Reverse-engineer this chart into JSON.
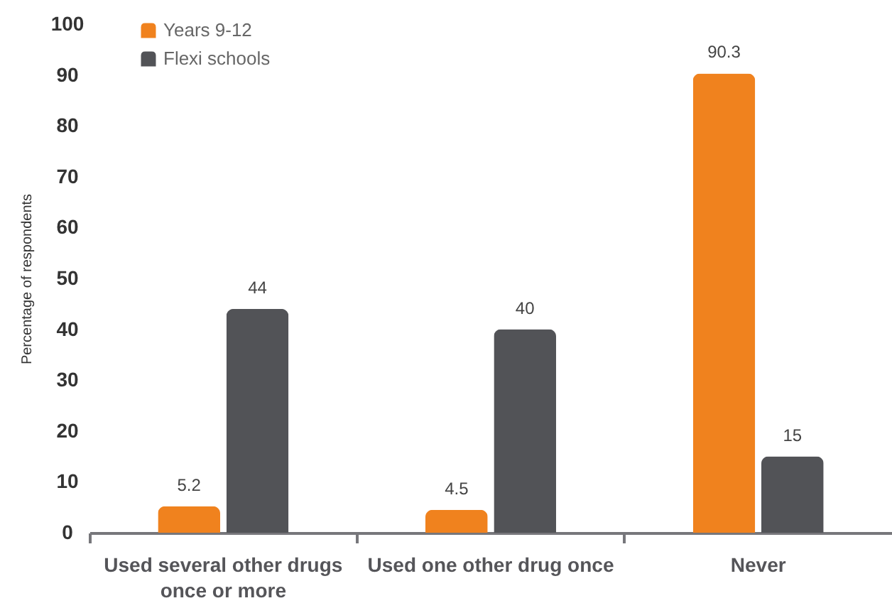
{
  "chart_data": {
    "type": "bar",
    "ylabel": "Percentage of respondents",
    "categories": [
      "Used several other drugs once or more",
      "Used one other drug once",
      "Never"
    ],
    "series": [
      {
        "name": "Years 9-12",
        "color": "#f0821e",
        "values": [
          5.2,
          4.5,
          90.3
        ]
      },
      {
        "name": "Flexi schools",
        "color": "#525357",
        "values": [
          44,
          40,
          15
        ]
      }
    ],
    "ylim": [
      0,
      100
    ],
    "yticks": [
      0,
      10,
      20,
      30,
      40,
      50,
      60,
      70,
      80,
      90,
      100
    ],
    "legend": "top left",
    "data_labels": true
  }
}
